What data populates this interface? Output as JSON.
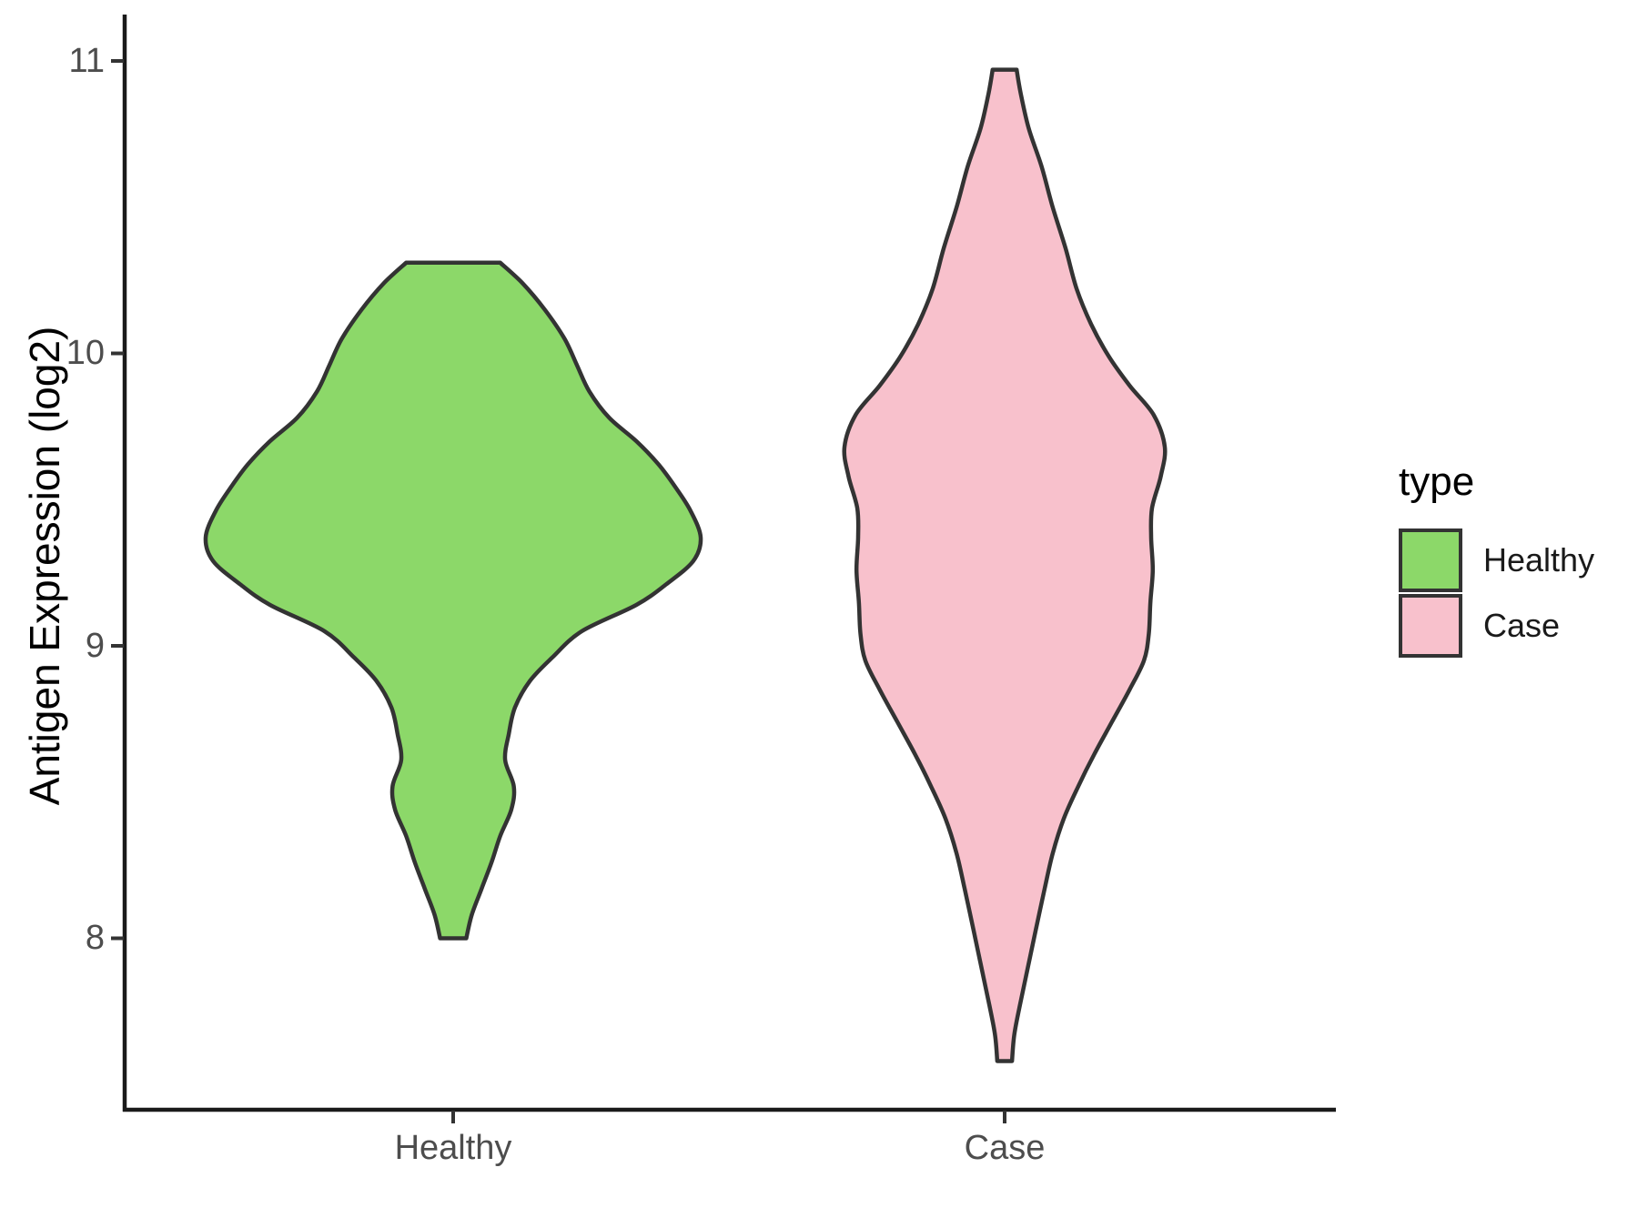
{
  "figure": {
    "background": "#ffffff"
  },
  "chart_data": {
    "type": "violin",
    "title": "",
    "xlabel": "",
    "ylabel": "Antigen Expression (log2)",
    "categories": [
      "Healthy",
      "Case"
    ],
    "yticks": [
      {
        "label": "11",
        "value": 11
      },
      {
        "label": "10",
        "value": 10
      },
      {
        "label": "9",
        "value": 9
      },
      {
        "label": "8",
        "value": 8
      }
    ],
    "ylim": [
      7.4,
      11.1
    ],
    "grid": "off",
    "outline_color": "#333333",
    "legend": {
      "title": "type",
      "position": "right",
      "entries": [
        {
          "label": "Healthy",
          "color": "#8CD869"
        },
        {
          "label": "Case",
          "color": "#F8C1CC"
        }
      ]
    },
    "series": [
      {
        "name": "Healthy",
        "fill": "#8CD869",
        "min": 8.0,
        "max": 10.31,
        "peak_value": 9.37,
        "profile": [
          [
            10.31,
            0.19
          ],
          [
            10.24,
            0.28
          ],
          [
            10.15,
            0.37
          ],
          [
            10.05,
            0.45
          ],
          [
            9.96,
            0.5
          ],
          [
            9.87,
            0.55
          ],
          [
            9.78,
            0.63
          ],
          [
            9.7,
            0.74
          ],
          [
            9.62,
            0.83
          ],
          [
            9.54,
            0.9
          ],
          [
            9.46,
            0.96
          ],
          [
            9.37,
            1.0
          ],
          [
            9.29,
            0.97
          ],
          [
            9.21,
            0.86
          ],
          [
            9.14,
            0.74
          ],
          [
            9.05,
            0.52
          ],
          [
            8.96,
            0.4
          ],
          [
            8.88,
            0.31
          ],
          [
            8.79,
            0.25
          ],
          [
            8.7,
            0.225
          ],
          [
            8.61,
            0.21
          ],
          [
            8.52,
            0.245
          ],
          [
            8.44,
            0.235
          ],
          [
            8.35,
            0.19
          ],
          [
            8.26,
            0.155
          ],
          [
            8.17,
            0.115
          ],
          [
            8.08,
            0.075
          ],
          [
            8.0,
            0.053
          ]
        ]
      },
      {
        "name": "Case",
        "fill": "#F8C1CC",
        "min": 7.58,
        "max": 10.97,
        "peak_value": 9.68,
        "profile": [
          [
            10.97,
            0.075
          ],
          [
            10.89,
            0.1
          ],
          [
            10.77,
            0.15
          ],
          [
            10.64,
            0.23
          ],
          [
            10.5,
            0.3
          ],
          [
            10.36,
            0.38
          ],
          [
            10.22,
            0.45
          ],
          [
            10.1,
            0.54
          ],
          [
            9.99,
            0.65
          ],
          [
            9.89,
            0.78
          ],
          [
            9.79,
            0.93
          ],
          [
            9.68,
            1.0
          ],
          [
            9.58,
            0.975
          ],
          [
            9.47,
            0.92
          ],
          [
            9.37,
            0.915
          ],
          [
            9.26,
            0.925
          ],
          [
            9.15,
            0.91
          ],
          [
            9.04,
            0.9
          ],
          [
            8.95,
            0.87
          ],
          [
            8.85,
            0.78
          ],
          [
            8.74,
            0.67
          ],
          [
            8.63,
            0.56
          ],
          [
            8.52,
            0.46
          ],
          [
            8.41,
            0.37
          ],
          [
            8.29,
            0.3
          ],
          [
            8.17,
            0.25
          ],
          [
            8.03,
            0.195
          ],
          [
            7.9,
            0.145
          ],
          [
            7.77,
            0.095
          ],
          [
            7.67,
            0.06
          ],
          [
            7.58,
            0.046
          ]
        ]
      }
    ]
  }
}
